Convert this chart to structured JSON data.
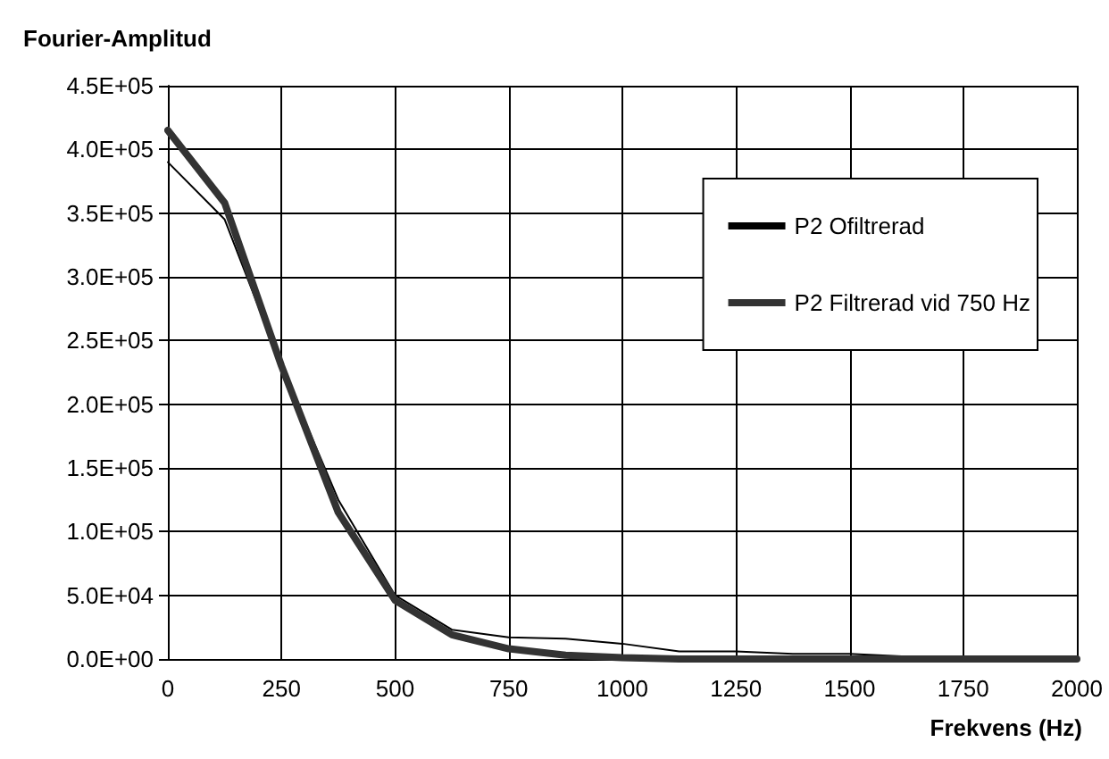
{
  "chart_data": {
    "type": "line",
    "xlabel": "Frekvens (Hz)",
    "ylabel": "Fourier-Amplitud",
    "x": [
      0,
      125,
      250,
      375,
      500,
      625,
      750,
      875,
      1000,
      1125,
      1250,
      1375,
      1500,
      1625,
      1750,
      1875,
      2000
    ],
    "series": [
      {
        "name": "P2 Ofiltrerad",
        "color": "#000000",
        "values": [
          390000,
          345000,
          230000,
          125000,
          50000,
          23000,
          17000,
          16000,
          12000,
          6000,
          6000,
          4000,
          4000,
          2000,
          1000,
          1000,
          1000
        ]
      },
      {
        "name": "P2 Filtrerad vid 750 Hz",
        "color": "#333333",
        "values": [
          415000,
          358000,
          230000,
          115000,
          46000,
          19000,
          8000,
          3000,
          1000,
          0,
          0,
          0,
          0,
          0,
          0,
          0,
          0
        ]
      }
    ],
    "xlim": [
      0,
      2000
    ],
    "xticks": [
      0,
      250,
      500,
      750,
      1000,
      1250,
      1500,
      1750,
      2000
    ],
    "ylim": [
      0,
      450000
    ],
    "yticks": [
      {
        "value": 0,
        "label": "0.0E+00"
      },
      {
        "value": 50000,
        "label": "5.0E+04"
      },
      {
        "value": 100000,
        "label": "1.0E+05"
      },
      {
        "value": 150000,
        "label": "1.5E+05"
      },
      {
        "value": 200000,
        "label": "2.0E+05"
      },
      {
        "value": 250000,
        "label": "2.5E+05"
      },
      {
        "value": 300000,
        "label": "3.0E+05"
      },
      {
        "value": 350000,
        "label": "3.5E+05"
      },
      {
        "value": 400000,
        "label": "4.0E+05"
      },
      {
        "value": 450000,
        "label": "4.5E+05"
      }
    ],
    "grid": true,
    "legend": "right",
    "marker": "none",
    "line_style": "solid"
  }
}
